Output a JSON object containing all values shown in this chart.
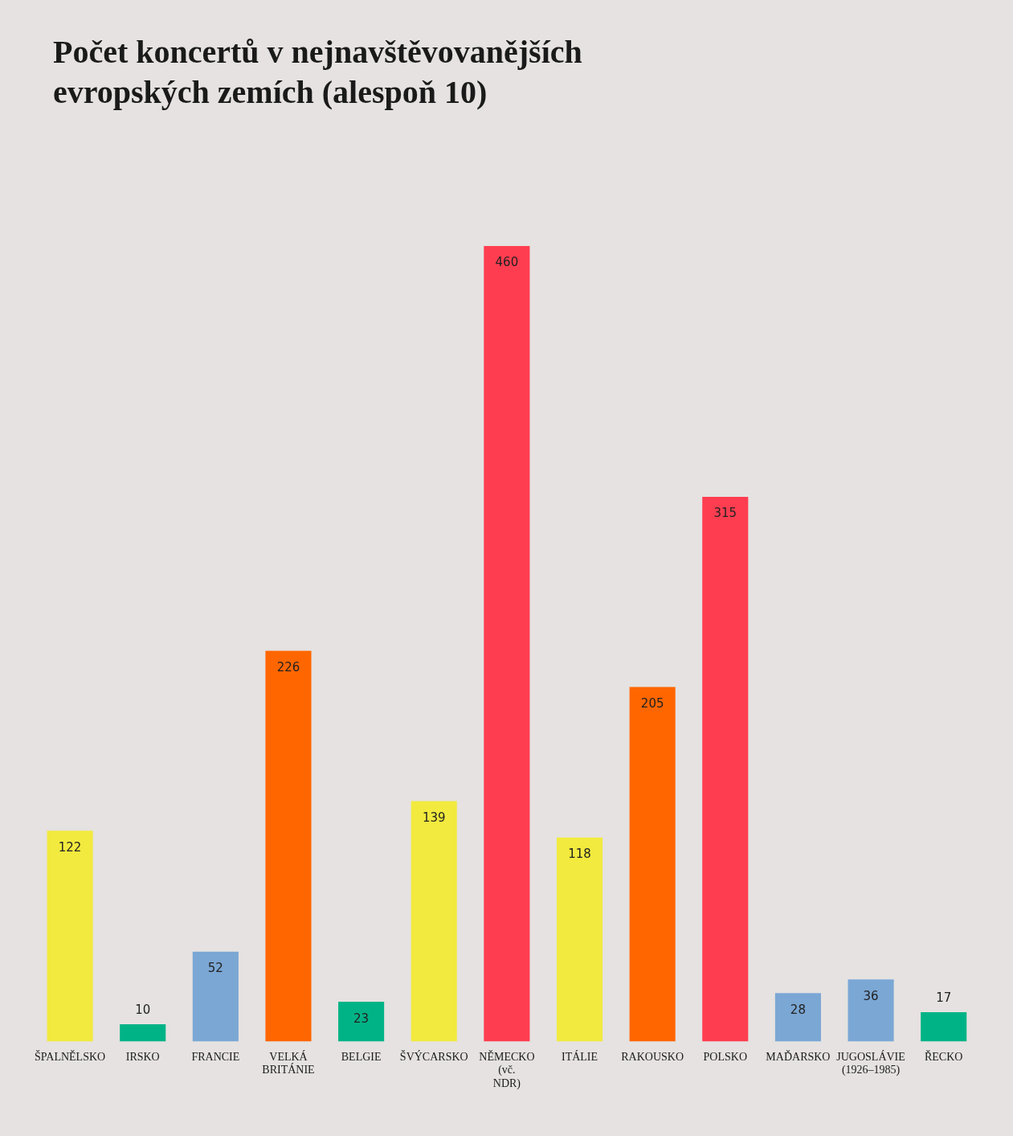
{
  "chart_data": {
    "type": "bar",
    "title": "Počet koncertů v nejnavštěvovanějších evropských zemích (alespoň 10)",
    "categories": [
      "ŠPALNĚLSKO",
      "IRSKO",
      "FRANCIE",
      "VELKÁ BRITÁNIE",
      "BELGIE",
      "ŠVÝCARSKO",
      "NĚMECKO (vč. NDR)",
      "ITÁLIE",
      "RAKOUSKO",
      "POLSKO",
      "MAĎARSKO",
      "JUGOSLÁVIE (1926–1985)",
      "ŘECKO"
    ],
    "values": [
      122,
      10,
      52,
      226,
      23,
      139,
      460,
      118,
      205,
      315,
      28,
      36,
      17
    ],
    "colors": [
      "#f2ea3e",
      "#00b386",
      "#7ba7d4",
      "#ff6600",
      "#00b386",
      "#f2ea3e",
      "#ff3d50",
      "#f2ea3e",
      "#ff6600",
      "#ff3d50",
      "#7ba7d4",
      "#7ba7d4",
      "#00b386"
    ],
    "data_labels": true,
    "tick_labels": "x",
    "grid": false,
    "legend": false
  }
}
